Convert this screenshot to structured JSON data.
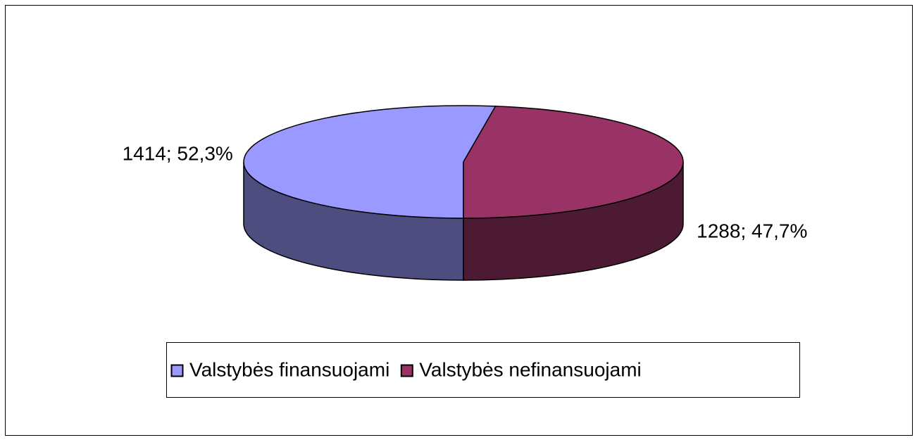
{
  "chart_data": {
    "type": "pie",
    "categories": [
      "Valstybės finansuojami",
      "Valstybės nefinansuojami"
    ],
    "values": [
      1414,
      1288
    ],
    "value_labels": [
      "1414; 52,3%",
      "1288; 47,7%"
    ],
    "colors": [
      "#9999ff",
      "#993366"
    ],
    "side_colors": [
      "#4d4d80",
      "#4d1a33"
    ],
    "legend": "bottom"
  }
}
